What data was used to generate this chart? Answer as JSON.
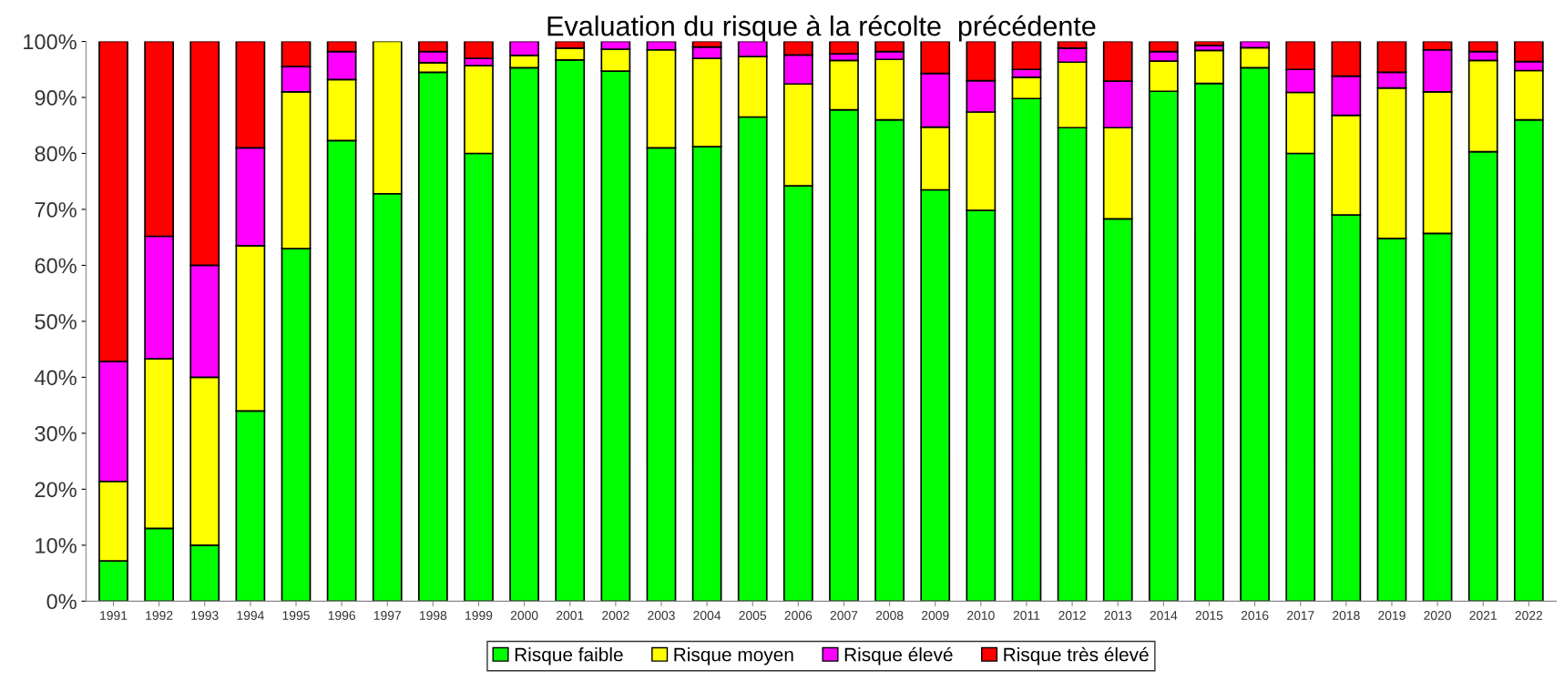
{
  "chart_data": {
    "type": "bar",
    "stacked": true,
    "title": "Evaluation du risque à la récolte  précédente",
    "categories": [
      "1991",
      "1992",
      "1993",
      "1994",
      "1995",
      "1996",
      "1997",
      "1998",
      "1999",
      "2000",
      "2001",
      "2002",
      "2003",
      "2004",
      "2005",
      "2006",
      "2007",
      "2008",
      "2009",
      "2010",
      "2011",
      "2012",
      "2013",
      "2014",
      "2015",
      "2016",
      "2017",
      "2018",
      "2019",
      "2020",
      "2021",
      "2022"
    ],
    "series": [
      {
        "name": "Risque faible",
        "color": "#00ff00",
        "values": [
          7.2,
          13,
          10,
          34,
          63,
          82.3,
          72.8,
          94.5,
          80,
          95.3,
          96.7,
          94.7,
          81,
          81.2,
          86.5,
          74.2,
          87.8,
          86,
          73.5,
          69.8,
          89.8,
          84.6,
          68.3,
          91.1,
          92.5,
          95.3,
          80,
          69,
          64.8,
          65.7,
          80.3,
          86
        ]
      },
      {
        "name": "Risque moyen",
        "color": "#ffff00",
        "values": [
          14.2,
          30.3,
          30,
          29.5,
          28,
          10.9,
          27.2,
          1.7,
          15.7,
          2.2,
          2.1,
          3.9,
          17.5,
          15.8,
          10.8,
          18.2,
          8.8,
          10.8,
          11.2,
          17.6,
          3.8,
          11.7,
          16.3,
          5.4,
          5.9,
          3.6,
          10.9,
          17.8,
          26.9,
          25.3,
          16.3,
          8.8
        ]
      },
      {
        "name": "Risque élevé",
        "color": "#ff00ff",
        "values": [
          21.4,
          21.9,
          20,
          17.5,
          4.5,
          5,
          0,
          2,
          1.3,
          2.5,
          0,
          1.4,
          1.5,
          2,
          2.7,
          5.2,
          1.2,
          1.4,
          9.6,
          5.6,
          1.4,
          2.5,
          8.3,
          1.7,
          0.9,
          1.1,
          4.1,
          7,
          2.8,
          7.5,
          1.6,
          1.6
        ]
      },
      {
        "name": "Risque très élevé",
        "color": "#ff0000",
        "values": [
          57.2,
          34.8,
          40,
          19,
          4.5,
          1.8,
          0,
          1.8,
          3,
          0,
          1.2,
          0,
          0,
          1,
          0,
          2.4,
          2.2,
          1.8,
          5.7,
          7,
          5,
          1.2,
          7.1,
          1.8,
          0.7,
          0,
          5,
          6.2,
          5.5,
          1.5,
          1.8,
          3.6
        ]
      }
    ],
    "ylim": [
      0,
      100
    ],
    "yticks": [
      {
        "value": 0,
        "label": "0%"
      },
      {
        "value": 10,
        "label": "10%"
      },
      {
        "value": 20,
        "label": "20%"
      },
      {
        "value": 30,
        "label": "30%"
      },
      {
        "value": 40,
        "label": "40%"
      },
      {
        "value": 50,
        "label": "50%"
      },
      {
        "value": 60,
        "label": "60%"
      },
      {
        "value": 70,
        "label": "70%"
      },
      {
        "value": 80,
        "label": "80%"
      },
      {
        "value": 90,
        "label": "90%"
      },
      {
        "value": 100,
        "label": "100%"
      }
    ],
    "grid": false,
    "legend": "bottom"
  }
}
